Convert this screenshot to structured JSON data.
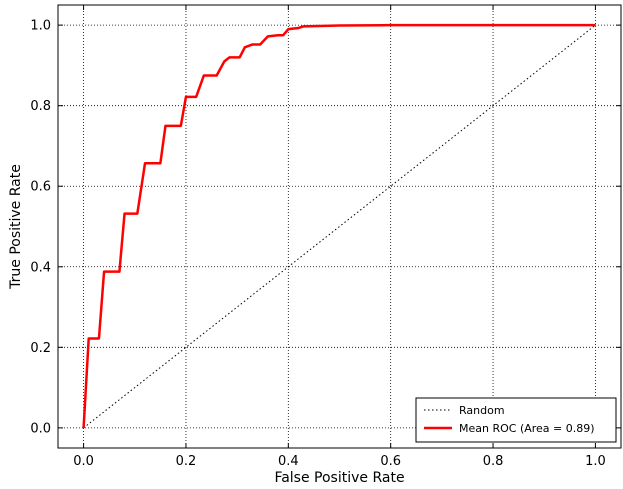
{
  "chart_data": {
    "type": "line",
    "title": "",
    "xlabel": "False Positive Rate",
    "ylabel": "True Positive Rate",
    "xlim": [
      -0.05,
      1.05
    ],
    "ylim": [
      -0.05,
      1.05
    ],
    "xticks": [
      0.0,
      0.2,
      0.4,
      0.6,
      0.8,
      1.0
    ],
    "yticks": [
      0.0,
      0.2,
      0.4,
      0.6,
      0.8,
      1.0
    ],
    "xtick_labels": [
      "0.0",
      "0.2",
      "0.4",
      "0.6",
      "0.8",
      "1.0"
    ],
    "ytick_labels": [
      "0.0",
      "0.2",
      "0.4",
      "0.6",
      "0.8",
      "1.0"
    ],
    "grid": true,
    "legend_position": "bottom-right",
    "series": [
      {
        "name": "Random",
        "color": "#000000",
        "style": "dotted",
        "x": [
          0.0,
          1.0
        ],
        "y": [
          0.0,
          1.0
        ]
      },
      {
        "name": "Mean ROC (Area = 0.89)",
        "color": "#ff0000",
        "style": "solid",
        "x": [
          0.0,
          0.01,
          0.03,
          0.04,
          0.07,
          0.08,
          0.105,
          0.12,
          0.15,
          0.16,
          0.19,
          0.2,
          0.22,
          0.235,
          0.26,
          0.275,
          0.285,
          0.305,
          0.315,
          0.33,
          0.345,
          0.36,
          0.38,
          0.39,
          0.4,
          0.42,
          0.43,
          0.5,
          0.6,
          0.8,
          1.0
        ],
        "y": [
          0.0,
          0.222,
          0.222,
          0.388,
          0.388,
          0.532,
          0.532,
          0.657,
          0.657,
          0.75,
          0.75,
          0.822,
          0.822,
          0.875,
          0.875,
          0.91,
          0.92,
          0.92,
          0.945,
          0.952,
          0.952,
          0.972,
          0.975,
          0.975,
          0.99,
          0.993,
          0.997,
          0.999,
          1.0,
          1.0,
          1.0
        ]
      }
    ]
  }
}
